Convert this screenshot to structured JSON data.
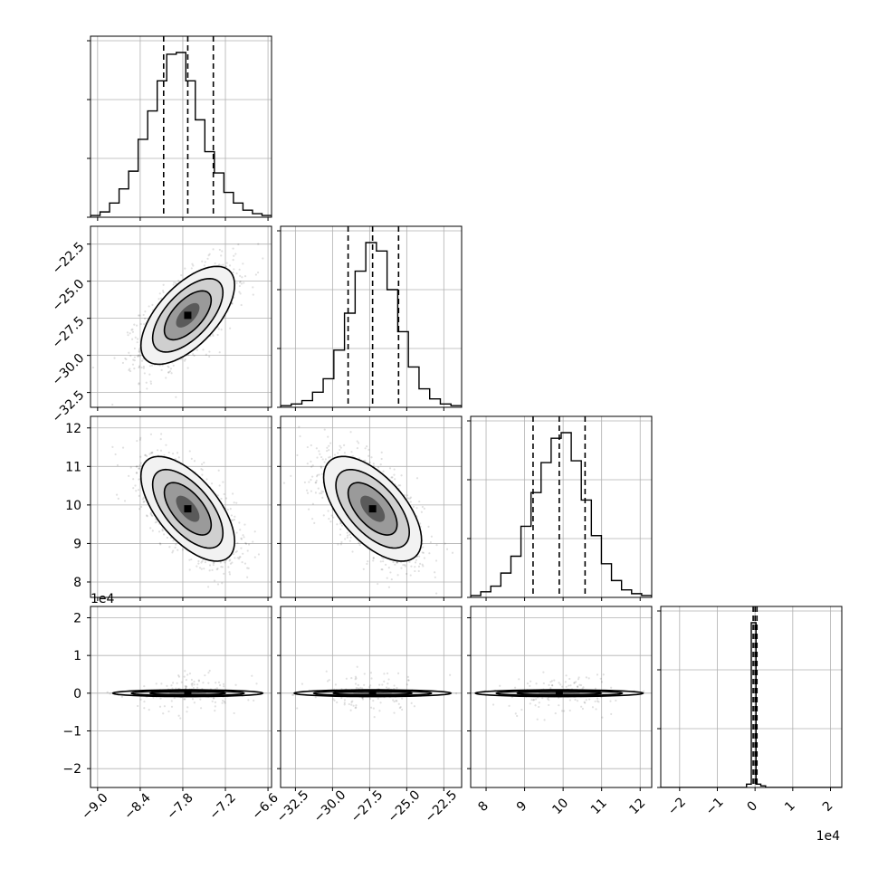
{
  "chart_data": {
    "type": "corner",
    "title": "",
    "parameters": [
      {
        "range": [
          -9.1,
          -6.55
        ],
        "ticks": [
          -9.0,
          -8.4,
          -7.8,
          -7.2,
          -6.6
        ],
        "tick_labels": [
          "−9.0",
          "−8.4",
          "−7.8",
          "−7.2",
          "−6.6"
        ],
        "mean": -7.73,
        "sigma": 0.33,
        "quantiles": [
          -8.07,
          -7.73,
          -7.37
        ],
        "hist_counts": [
          1,
          3,
          8,
          16,
          26,
          44,
          60,
          77,
          92,
          93,
          77,
          55,
          37,
          25,
          14,
          8,
          4,
          2,
          1
        ]
      },
      {
        "range": [
          -33.5,
          -21.3
        ],
        "ticks": [
          -32.5,
          -30.0,
          -27.5,
          -25.0,
          -22.5
        ],
        "tick_labels": [
          "−32.5",
          "−30.0",
          "−27.5",
          "−25.0",
          "−22.5"
        ],
        "mean": -27.3,
        "sigma": 1.65,
        "quantiles": [
          -28.95,
          -27.3,
          -25.55
        ],
        "hist_counts": [
          1,
          2,
          4,
          9,
          17,
          34,
          56,
          81,
          98,
          93,
          70,
          45,
          24,
          11,
          5,
          2,
          1
        ]
      },
      {
        "range": [
          7.6,
          12.3
        ],
        "ticks": [
          8,
          9,
          10,
          11,
          12
        ],
        "tick_labels": [
          "8",
          "9",
          "10",
          "11",
          "12"
        ],
        "mean": 9.9,
        "sigma": 0.68,
        "quantiles": [
          9.22,
          9.9,
          10.57
        ],
        "hist_counts": [
          1,
          3,
          6,
          13,
          22,
          38,
          56,
          72,
          85,
          88,
          73,
          52,
          33,
          18,
          9,
          4,
          2,
          1
        ]
      },
      {
        "range": [
          -2.5,
          2.3
        ],
        "ticks": [
          -2,
          -1,
          0,
          1,
          2
        ],
        "tick_labels": [
          "−2",
          "−1",
          "0",
          "1",
          "2"
        ],
        "offset_label": "1e4",
        "mean": 0.0,
        "sigma": 0.05,
        "quantiles": [
          -0.05,
          0.0,
          0.05
        ],
        "hist_counts": [
          0,
          0,
          0,
          0,
          0,
          0,
          0,
          0,
          0,
          0,
          0,
          0,
          0,
          0,
          0,
          0,
          0,
          0,
          2,
          100,
          2,
          1,
          0,
          0,
          0,
          0,
          0,
          0,
          0,
          0,
          0,
          0,
          0,
          0,
          0,
          0,
          0,
          0
        ]
      }
    ],
    "correlations": [
      [
        1,
        0.62,
        -0.62,
        0.0
      ],
      [
        0.62,
        1,
        -0.6,
        0.0
      ],
      [
        -0.62,
        -0.6,
        1,
        0.0
      ],
      [
        0.0,
        0.0,
        0.0,
        1
      ]
    ],
    "contour_levels_sigma": [
      0.5,
      1.0,
      1.5,
      2.0
    ],
    "grid": true,
    "quantile_style": "dashed"
  }
}
